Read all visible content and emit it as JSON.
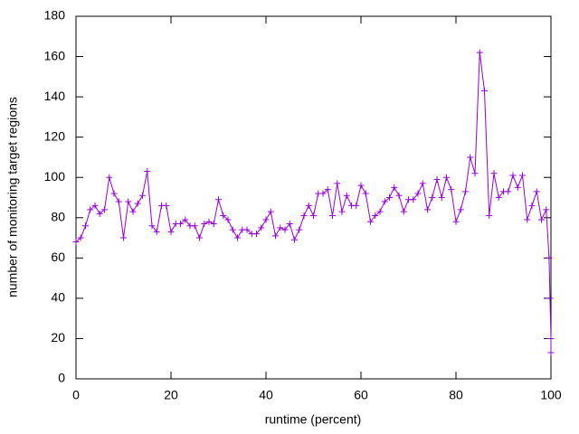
{
  "chart_data": {
    "type": "line",
    "xlabel": "runtime (percent)",
    "ylabel": "number of monitoring target regions",
    "x": [
      0,
      1,
      2,
      3,
      4,
      5,
      6,
      7,
      8,
      9,
      10,
      11,
      12,
      13,
      14,
      15,
      16,
      17,
      18,
      19,
      20,
      21,
      22,
      23,
      24,
      25,
      26,
      27,
      28,
      29,
      30,
      31,
      32,
      33,
      34,
      35,
      36,
      37,
      38,
      39,
      40,
      41,
      42,
      43,
      44,
      45,
      46,
      47,
      48,
      49,
      50,
      51,
      52,
      53,
      54,
      55,
      56,
      57,
      58,
      59,
      60,
      61,
      62,
      63,
      64,
      65,
      66,
      67,
      68,
      69,
      70,
      71,
      72,
      73,
      74,
      75,
      76,
      77,
      78,
      79,
      80,
      81,
      82,
      83,
      84,
      85,
      86,
      87,
      88,
      89,
      90,
      91,
      92,
      93,
      94,
      95,
      96,
      97,
      98,
      99,
      99.6,
      99.8,
      100,
      100
    ],
    "series": [
      {
        "color": "#9400d3",
        "values": [
          68,
          70,
          76,
          84,
          86,
          82,
          84,
          100,
          92,
          88,
          70,
          88,
          83,
          87,
          91,
          103,
          76,
          73,
          86,
          86,
          73,
          77,
          77,
          79,
          76,
          76,
          70,
          77,
          78,
          77,
          89,
          81,
          79,
          74,
          70,
          74,
          74,
          72,
          72,
          75,
          79,
          83,
          71,
          75,
          74,
          77,
          69,
          74,
          81,
          86,
          81,
          92,
          92,
          94,
          81,
          97,
          83,
          91,
          86,
          86,
          96,
          92,
          78,
          81,
          83,
          88,
          90,
          95,
          91,
          83,
          89,
          89,
          92,
          97,
          84,
          90,
          99,
          90,
          100,
          94,
          78,
          84,
          93,
          110,
          102,
          162,
          143,
          81,
          102,
          90,
          93,
          93,
          101,
          95,
          101,
          79,
          86,
          93,
          79,
          84,
          60,
          40,
          20,
          13
        ]
      }
    ],
    "xlim": [
      0,
      100
    ],
    "xticks": [
      0,
      20,
      40,
      60,
      80,
      100
    ],
    "ylim": [
      0,
      180
    ],
    "yticks": [
      0,
      20,
      40,
      60,
      80,
      100,
      120,
      140,
      160,
      180
    ]
  }
}
